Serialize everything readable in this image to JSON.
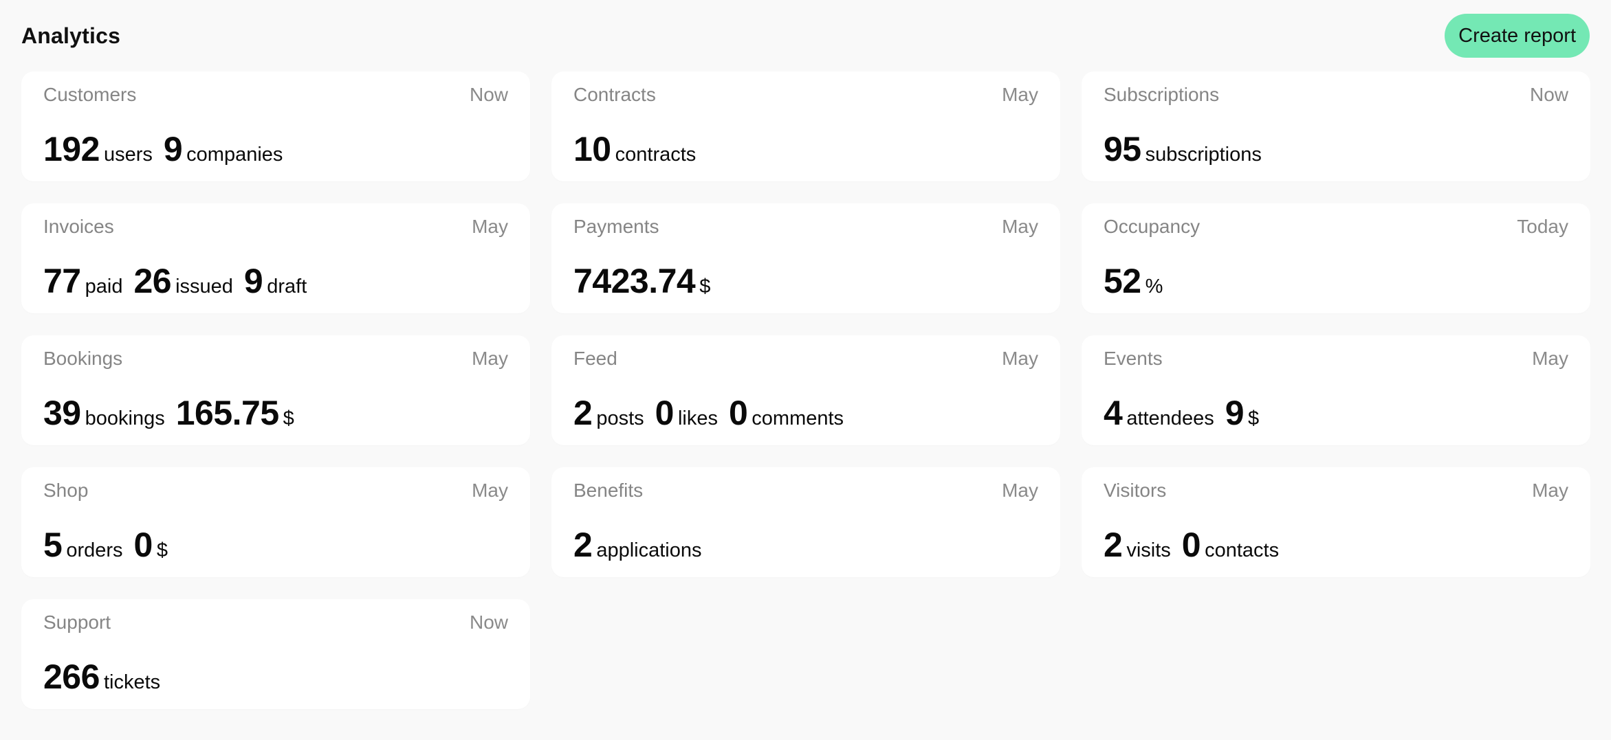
{
  "header": {
    "title": "Analytics",
    "create_report_label": "Create report"
  },
  "cards": [
    {
      "title": "Customers",
      "period": "Now",
      "metrics": [
        {
          "value": "192",
          "unit": "users"
        },
        {
          "value": "9",
          "unit": "companies"
        }
      ]
    },
    {
      "title": "Contracts",
      "period": "May",
      "metrics": [
        {
          "value": "10",
          "unit": "contracts"
        }
      ]
    },
    {
      "title": "Subscriptions",
      "period": "Now",
      "metrics": [
        {
          "value": "95",
          "unit": "subscriptions"
        }
      ]
    },
    {
      "title": "Invoices",
      "period": "May",
      "metrics": [
        {
          "value": "77",
          "unit": "paid"
        },
        {
          "value": "26",
          "unit": "issued"
        },
        {
          "value": "9",
          "unit": "draft"
        }
      ]
    },
    {
      "title": "Payments",
      "period": "May",
      "metrics": [
        {
          "value": "7423.74",
          "unit": "$"
        }
      ]
    },
    {
      "title": "Occupancy",
      "period": "Today",
      "metrics": [
        {
          "value": "52",
          "unit": "%"
        }
      ]
    },
    {
      "title": "Bookings",
      "period": "May",
      "metrics": [
        {
          "value": "39",
          "unit": "bookings"
        },
        {
          "value": "165.75",
          "unit": "$"
        }
      ]
    },
    {
      "title": "Feed",
      "period": "May",
      "metrics": [
        {
          "value": "2",
          "unit": "posts"
        },
        {
          "value": "0",
          "unit": "likes"
        },
        {
          "value": "0",
          "unit": "comments"
        }
      ]
    },
    {
      "title": "Events",
      "period": "May",
      "metrics": [
        {
          "value": "4",
          "unit": "attendees"
        },
        {
          "value": "9",
          "unit": "$"
        }
      ]
    },
    {
      "title": "Shop",
      "period": "May",
      "metrics": [
        {
          "value": "5",
          "unit": "orders"
        },
        {
          "value": "0",
          "unit": "$"
        }
      ]
    },
    {
      "title": "Benefits",
      "period": "May",
      "metrics": [
        {
          "value": "2",
          "unit": "applications"
        }
      ]
    },
    {
      "title": "Visitors",
      "period": "May",
      "metrics": [
        {
          "value": "2",
          "unit": "visits"
        },
        {
          "value": "0",
          "unit": "contacts"
        }
      ]
    },
    {
      "title": "Support",
      "period": "Now",
      "metrics": [
        {
          "value": "266",
          "unit": "tickets"
        }
      ]
    }
  ],
  "colors": {
    "background": "#f9f9f9",
    "card": "#ffffff",
    "accent": "#74e8b4",
    "muted_text": "#858585",
    "text": "#0a0a0a"
  }
}
